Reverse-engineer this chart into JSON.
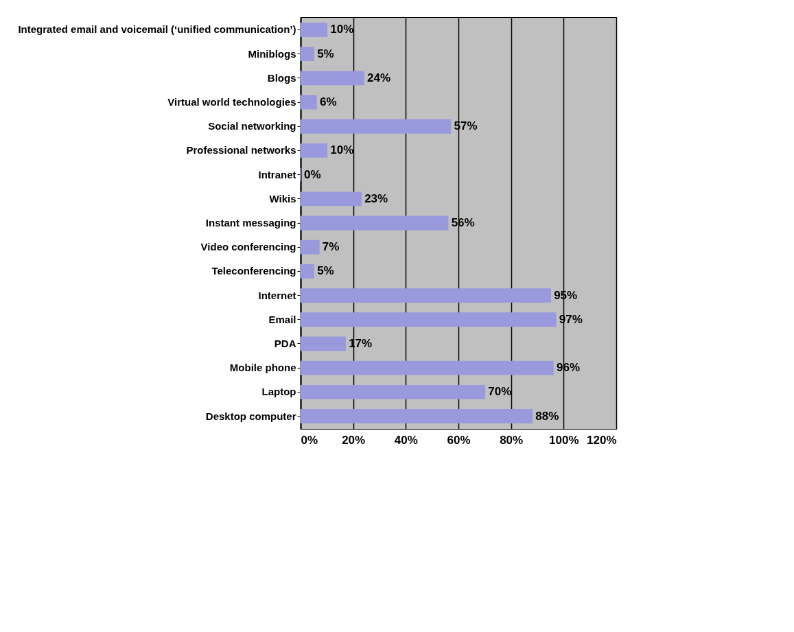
{
  "chart_data": {
    "type": "bar",
    "orientation": "horizontal",
    "categories": [
      "Integrated email and voicemail (‘unified communication’)",
      "Miniblogs",
      "Blogs",
      "Virtual world technologies",
      "Social networking",
      "Professional networks",
      "Intranet",
      "Wikis",
      "Instant messaging",
      "Video conferencing",
      "Teleconferencing",
      "Internet",
      "Email",
      "PDA",
      "Mobile phone",
      "Laptop",
      "Desktop computer"
    ],
    "values": [
      10,
      5,
      24,
      6,
      57,
      10,
      0,
      23,
      56,
      7,
      5,
      95,
      97,
      17,
      96,
      70,
      88
    ],
    "value_labels": [
      "10%",
      "5%",
      "24%",
      "6%",
      "57%",
      "10%",
      "0%",
      "23%",
      "56%",
      "7%",
      "5%",
      "95%",
      "97%",
      "17%",
      "96%",
      "70%",
      "88%"
    ],
    "color": "#9999dd",
    "xlim": [
      0,
      120
    ],
    "xticks": [
      {
        "value": 0,
        "label": "0%"
      },
      {
        "value": 20,
        "label": "20%"
      },
      {
        "value": 40,
        "label": "40%"
      },
      {
        "value": 60,
        "label": "60%"
      },
      {
        "value": 80,
        "label": "80%"
      },
      {
        "value": 100,
        "label": "100%"
      },
      {
        "value": 120,
        "label": "120%"
      }
    ],
    "grid": "x",
    "legend": false
  }
}
